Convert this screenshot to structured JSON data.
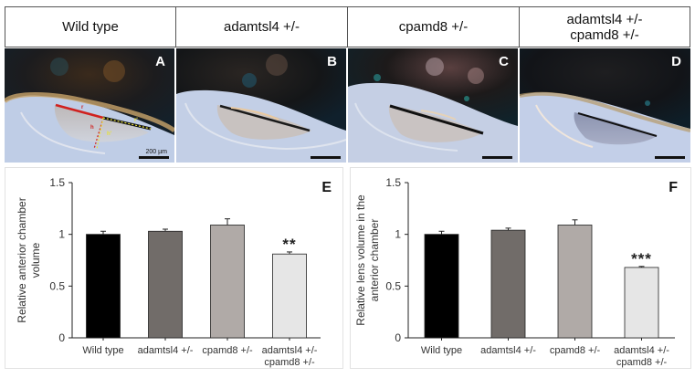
{
  "header": {
    "columns": [
      {
        "label": "Wild type"
      },
      {
        "label": "adamtsl4 +/-"
      },
      {
        "label": "cpamd8 +/-"
      },
      {
        "label_line1": "adamtsl4 +/-",
        "label_line2": "cpamd8 +/-"
      }
    ]
  },
  "photos": [
    {
      "letter": "A",
      "scalebar_label": "200 µm",
      "annotations": [
        "r",
        "h",
        "h'",
        "r'"
      ]
    },
    {
      "letter": "B"
    },
    {
      "letter": "C"
    },
    {
      "letter": "D"
    }
  ],
  "colors": {
    "bar_wild_type": "#000000",
    "bar_adamtsl4": "#716c69",
    "bar_cpamd8": "#b0aaa7",
    "bar_double": "#e6e6e6",
    "annotation_red": "#d0211f",
    "annotation_yellow": "#e8e23a"
  },
  "chart_data": [
    {
      "type": "bar",
      "panel": "E",
      "title": "",
      "xlabel": "",
      "ylabel": "Relative anterior chamber volume",
      "ylabel_line1": "Relative anterior chamber",
      "ylabel_line2": "volume",
      "ylim": [
        0,
        1.5
      ],
      "yticks": [
        "0",
        "0.5",
        "1",
        "1.5"
      ],
      "grid": false,
      "legend": "none",
      "categories": [
        "Wild type",
        "adamtsl4 +/-",
        "cpamd8 +/-",
        "adamtsl4 +/- cpamd8 +/-"
      ],
      "category_lines": [
        [
          "Wild type"
        ],
        [
          "adamtsl4 +/-"
        ],
        [
          "cpamd8 +/-"
        ],
        [
          "adamtsl4 +/-",
          "cpamd8 +/-"
        ]
      ],
      "values": [
        1.0,
        1.03,
        1.09,
        0.81
      ],
      "errors": [
        0.03,
        0.02,
        0.06,
        0.02
      ],
      "annotations": [
        "",
        "",
        "",
        "**"
      ]
    },
    {
      "type": "bar",
      "panel": "F",
      "title": "",
      "xlabel": "",
      "ylabel": "Relative lens volume in the anterior chamber",
      "ylabel_line1": "Relative lens volume in the",
      "ylabel_line2": "anterior chamber",
      "ylim": [
        0,
        1.5
      ],
      "yticks": [
        "0",
        "0.5",
        "1",
        "1.5"
      ],
      "grid": false,
      "legend": "none",
      "categories": [
        "Wild type",
        "adamtsl4 +/-",
        "cpamd8 +/-",
        "adamtsl4 +/- cpamd8 +/-"
      ],
      "category_lines": [
        [
          "Wild type"
        ],
        [
          "adamtsl4 +/-"
        ],
        [
          "cpamd8 +/-"
        ],
        [
          "adamtsl4 +/-",
          "cpamd8 +/-"
        ]
      ],
      "values": [
        1.0,
        1.04,
        1.09,
        0.68
      ],
      "errors": [
        0.03,
        0.02,
        0.05,
        0.01
      ],
      "annotations": [
        "",
        "",
        "",
        "***"
      ]
    }
  ]
}
